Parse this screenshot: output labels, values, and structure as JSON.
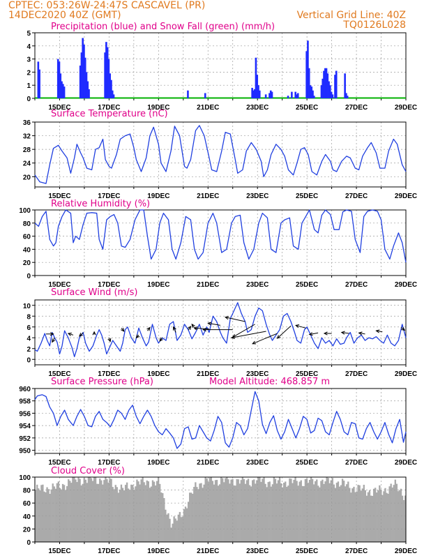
{
  "header": {
    "line1": "CPTEC:  053:26W-24:47S  CASCAVEL (PR)",
    "line2": "14DEC2020 40Z (GMT)",
    "grid_note": "Vertical Grid Line: 40Z",
    "code": "TQ0126L028"
  },
  "colors": {
    "header": "#e07a1f",
    "panel_title": "#e0008a",
    "precip": "#1f2bff",
    "snow": "#00b000",
    "line": "#1f3fe0",
    "cloud": "#aaaaaa",
    "grid": "#9a9a9a"
  },
  "x_tick_labels": [
    "15DEC",
    "17DEC",
    "19DEC",
    "21DEC",
    "23DEC",
    "25DEC",
    "27DEC",
    "29DEC"
  ],
  "chart_data": [
    {
      "id": "precip",
      "type": "bar",
      "title": "Precipitation (blue) and Snow Fall (green) (mm/h)",
      "ylim": [
        0,
        5
      ],
      "yticks": [
        0,
        1,
        2,
        3,
        4,
        5
      ],
      "grid": true,
      "x_range_days": [
        14.0,
        29.0
      ],
      "x": [
        14.1,
        14.15,
        14.9,
        14.95,
        15.0,
        15.05,
        15.1,
        15.15,
        15.8,
        15.85,
        15.9,
        15.95,
        16.0,
        16.05,
        16.1,
        16.15,
        16.8,
        16.85,
        16.9,
        16.95,
        17.0,
        17.05,
        17.1,
        17.15,
        20.15,
        20.85,
        22.75,
        22.8,
        22.85,
        22.9,
        22.95,
        23.0,
        23.05,
        23.3,
        23.45,
        23.5,
        23.55,
        24.2,
        24.35,
        24.5,
        24.55,
        24.6,
        24.95,
        25.0,
        25.05,
        25.1,
        25.15,
        25.2,
        25.25,
        25.55,
        25.6,
        25.65,
        25.7,
        25.75,
        25.8,
        25.85,
        25.9,
        25.95,
        26.0,
        26.1,
        26.15,
        26.5,
        26.55,
        26.6
      ],
      "values": [
        2.8,
        2.2,
        3.0,
        2.8,
        1.9,
        1.3,
        1.1,
        0.9,
        2.5,
        3.5,
        4.6,
        4.1,
        3.1,
        2.0,
        1.3,
        0.7,
        3.5,
        4.3,
        3.9,
        3.0,
        1.9,
        1.4,
        0.6,
        0.3,
        0.6,
        0.4,
        0.8,
        0.6,
        0.7,
        3.1,
        1.8,
        1.0,
        0.6,
        0.3,
        0.4,
        0.6,
        0.5,
        0.2,
        0.5,
        0.5,
        0.3,
        0.4,
        3.6,
        4.4,
        2.3,
        1.0,
        0.9,
        0.6,
        0.2,
        1.0,
        1.5,
        2.1,
        2.3,
        2.3,
        1.9,
        1.3,
        1.0,
        0.5,
        0.3,
        1.8,
        2.1,
        1.9,
        0.4,
        0.2
      ],
      "snow": "0"
    },
    {
      "id": "temp",
      "type": "line",
      "title": "Surface Temperature (nC)",
      "ylim": [
        17,
        36
      ],
      "yticks": [
        20,
        24,
        28,
        32,
        36
      ],
      "grid": true,
      "x_range_days": [
        14.0,
        29.0
      ],
      "x": [
        14.0,
        14.2,
        14.45,
        14.6,
        14.75,
        14.95,
        15.1,
        15.3,
        15.45,
        15.6,
        15.7,
        15.85,
        15.95,
        16.1,
        16.3,
        16.45,
        16.6,
        16.75,
        16.85,
        17.0,
        17.1,
        17.3,
        17.45,
        17.65,
        17.85,
        18.0,
        18.1,
        18.3,
        18.5,
        18.65,
        18.8,
        19.0,
        19.1,
        19.3,
        19.5,
        19.65,
        19.85,
        20.05,
        20.15,
        20.3,
        20.5,
        20.65,
        20.85,
        21.05,
        21.15,
        21.35,
        21.55,
        21.7,
        21.9,
        22.1,
        22.2,
        22.4,
        22.55,
        22.75,
        22.95,
        23.15,
        23.25,
        23.4,
        23.55,
        23.75,
        23.95,
        24.1,
        24.25,
        24.45,
        24.6,
        24.75,
        24.9,
        25.05,
        25.2,
        25.4,
        25.6,
        25.75,
        25.95,
        26.05,
        26.2,
        26.4,
        26.6,
        26.75,
        26.95,
        27.1,
        27.25,
        27.45,
        27.6,
        27.8,
        27.95,
        28.15,
        28.3,
        28.5,
        28.65,
        28.85,
        29.0
      ],
      "values": [
        20.5,
        18.5,
        18.0,
        23.5,
        28.3,
        29.2,
        27.5,
        25.5,
        21.0,
        25.5,
        29.5,
        27.0,
        25.5,
        22.5,
        22.0,
        28.0,
        28.5,
        31.0,
        25.0,
        23.0,
        22.5,
        26.5,
        31.0,
        32.0,
        32.5,
        28.5,
        25.0,
        21.5,
        25.5,
        32.0,
        34.5,
        29.5,
        24.0,
        21.5,
        27.5,
        34.8,
        32.0,
        23.0,
        22.5,
        25.0,
        33.5,
        35.0,
        32.0,
        25.5,
        22.0,
        21.5,
        27.5,
        33.0,
        32.5,
        25.0,
        21.0,
        22.0,
        27.5,
        30.0,
        28.0,
        24.5,
        20.0,
        22.0,
        26.5,
        29.5,
        28.0,
        26.0,
        22.0,
        20.5,
        24.0,
        28.0,
        28.5,
        26.5,
        21.5,
        20.5,
        24.5,
        26.5,
        24.5,
        22.0,
        21.5,
        24.5,
        26.0,
        25.5,
        22.5,
        22.0,
        26.0,
        28.5,
        30.0,
        27.0,
        22.5,
        22.5,
        27.5,
        31.0,
        29.5,
        23.5,
        21.5
      ]
    },
    {
      "id": "rh",
      "type": "line",
      "title": "Relative Humidity (%)",
      "ylim": [
        0,
        100
      ],
      "yticks": [
        0,
        20,
        40,
        60,
        80,
        100
      ],
      "grid": true,
      "x_range_days": [
        14.0,
        29.0
      ],
      "x": [
        14.0,
        14.15,
        14.3,
        14.45,
        14.6,
        14.75,
        14.85,
        14.95,
        15.1,
        15.25,
        15.45,
        15.55,
        15.65,
        15.8,
        15.95,
        16.1,
        16.3,
        16.5,
        16.6,
        16.75,
        16.9,
        17.05,
        17.2,
        17.35,
        17.5,
        17.65,
        17.85,
        18.05,
        18.25,
        18.4,
        18.55,
        18.7,
        18.9,
        19.05,
        19.2,
        19.4,
        19.55,
        19.7,
        19.9,
        20.1,
        20.3,
        20.45,
        20.6,
        20.8,
        21.0,
        21.2,
        21.35,
        21.55,
        21.75,
        21.95,
        22.1,
        22.3,
        22.45,
        22.65,
        22.85,
        23.05,
        23.2,
        23.4,
        23.55,
        23.75,
        23.95,
        24.1,
        24.3,
        24.45,
        24.65,
        24.8,
        24.95,
        25.1,
        25.3,
        25.45,
        25.6,
        25.75,
        25.95,
        26.1,
        26.3,
        26.45,
        26.6,
        26.8,
        26.95,
        27.15,
        27.3,
        27.45,
        27.65,
        27.85,
        28.0,
        28.15,
        28.35,
        28.5,
        28.7,
        28.85,
        29.0
      ],
      "values": [
        80,
        75,
        90,
        98,
        55,
        45,
        50,
        75,
        90,
        100,
        95,
        50,
        60,
        55,
        78,
        95,
        96,
        95,
        55,
        40,
        85,
        90,
        93,
        80,
        45,
        43,
        55,
        85,
        100,
        100,
        60,
        25,
        40,
        80,
        95,
        85,
        40,
        25,
        50,
        90,
        85,
        40,
        25,
        35,
        80,
        95,
        80,
        35,
        40,
        80,
        90,
        92,
        50,
        25,
        40,
        80,
        95,
        88,
        40,
        35,
        80,
        85,
        88,
        45,
        40,
        80,
        90,
        100,
        70,
        65,
        92,
        100,
        93,
        70,
        70,
        97,
        100,
        98,
        55,
        35,
        90,
        98,
        100,
        98,
        85,
        40,
        25,
        45,
        65,
        50,
        20
      ],
      "extra_dips": [
        [
          15.55,
          48
        ],
        [
          16.15,
          80
        ],
        [
          27.35,
          73
        ],
        [
          25.55,
          80
        ]
      ]
    },
    {
      "id": "wind",
      "type": "line",
      "title": "Surface Wind (m/s)",
      "ylim": [
        -1,
        11
      ],
      "yticks": [
        0,
        2,
        4,
        6,
        8,
        10
      ],
      "grid": true,
      "x_range_days": [
        14.0,
        29.0
      ],
      "x": [
        14.0,
        14.1,
        14.25,
        14.4,
        14.5,
        14.6,
        14.7,
        14.8,
        14.9,
        15.0,
        15.1,
        15.2,
        15.35,
        15.5,
        15.6,
        15.7,
        15.8,
        15.95,
        16.05,
        16.2,
        16.35,
        16.5,
        16.6,
        16.7,
        16.8,
        16.9,
        17.0,
        17.15,
        17.3,
        17.45,
        17.55,
        17.65,
        17.75,
        17.9,
        18.05,
        18.2,
        18.35,
        18.5,
        18.6,
        18.75,
        18.9,
        19.0,
        19.15,
        19.3,
        19.45,
        19.6,
        19.75,
        19.9,
        20.05,
        20.2,
        20.35,
        20.5,
        20.65,
        20.8,
        20.95,
        21.05,
        21.2,
        21.35,
        21.5,
        21.6,
        21.75,
        21.9,
        22.05,
        22.2,
        22.35,
        22.5,
        22.6,
        22.75,
        22.9,
        23.05,
        23.2,
        23.35,
        23.5,
        23.6,
        23.75,
        23.9,
        24.05,
        24.2,
        24.35,
        24.5,
        24.6,
        24.75,
        24.9,
        25.0,
        25.15,
        25.3,
        25.45,
        25.6,
        25.75,
        25.9,
        26.05,
        26.2,
        26.35,
        26.5,
        26.6,
        26.75,
        26.9,
        27.05,
        27.2,
        27.35,
        27.5,
        27.65,
        27.8,
        27.95,
        28.1,
        28.25,
        28.4,
        28.55,
        28.7,
        28.85,
        29.0
      ],
      "values": [
        1.8,
        1.5,
        3.0,
        4.8,
        3.5,
        2.5,
        5.0,
        4.0,
        3.2,
        1.0,
        2.5,
        5.3,
        4.0,
        2.2,
        0.5,
        2.0,
        4.0,
        5.0,
        3.0,
        1.5,
        2.5,
        4.5,
        5.5,
        4.5,
        3.0,
        1.0,
        2.0,
        3.5,
        2.5,
        1.5,
        3.0,
        5.5,
        6.0,
        4.0,
        3.0,
        5.8,
        4.0,
        2.5,
        3.2,
        6.5,
        4.0,
        3.0,
        4.0,
        3.5,
        6.5,
        7.0,
        3.5,
        4.5,
        6.5,
        5.5,
        3.8,
        5.0,
        6.5,
        4.5,
        6.0,
        5.0,
        8.0,
        7.0,
        5.0,
        4.0,
        3.0,
        7.5,
        9.0,
        10.5,
        8.5,
        7.0,
        5.0,
        5.5,
        8.0,
        9.5,
        9.0,
        6.5,
        4.5,
        3.5,
        4.5,
        5.5,
        8.0,
        8.5,
        7.0,
        5.0,
        3.5,
        3.0,
        5.5,
        6.0,
        4.5,
        3.0,
        2.0,
        4.0,
        3.0,
        3.5,
        2.5,
        3.8,
        2.8,
        3.0,
        4.0,
        5.0,
        3.0,
        4.0,
        4.5,
        3.5,
        4.0,
        3.8,
        4.2,
        3.5,
        3.0,
        4.5,
        3.0,
        2.5,
        3.5,
        6.5,
        4.0
      ],
      "vectors": [
        {
          "x": 14.45,
          "y": 4.7,
          "dx": 0.3,
          "dy": 0.0
        },
        {
          "x": 14.8,
          "y": 4.0,
          "dx": -0.1,
          "dy": -0.8
        },
        {
          "x": 15.55,
          "y": 4.5,
          "dx": -0.2,
          "dy": 0.3
        },
        {
          "x": 15.95,
          "y": 4.9,
          "dx": -0.15,
          "dy": -0.6
        },
        {
          "x": 16.4,
          "y": 4.6,
          "dx": 0.0,
          "dy": 0.5
        },
        {
          "x": 17.0,
          "y": 4.0,
          "dx": 0.05,
          "dy": -0.7
        },
        {
          "x": 17.5,
          "y": 5.8,
          "dx": 0.1,
          "dy": -0.6
        },
        {
          "x": 18.2,
          "y": 4.5,
          "dx": -0.1,
          "dy": -0.5
        },
        {
          "x": 18.55,
          "y": 5.3,
          "dx": 0.1,
          "dy": 0.6
        },
        {
          "x": 19.15,
          "y": 4.0,
          "dx": -0.1,
          "dy": -0.6
        },
        {
          "x": 19.7,
          "y": 5.0,
          "dx": -0.1,
          "dy": 1.0
        },
        {
          "x": 20.2,
          "y": 5.4,
          "dx": 0.1,
          "dy": 0.7
        },
        {
          "x": 20.5,
          "y": 5.5,
          "dx": -0.15,
          "dy": 1.0
        },
        {
          "x": 21.05,
          "y": 5.6,
          "dx": -0.6,
          "dy": 0.2
        },
        {
          "x": 21.5,
          "y": 6.3,
          "dx": -0.5,
          "dy": 0.4
        },
        {
          "x": 22.0,
          "y": 5.5,
          "dx": -1.2,
          "dy": 0.0
        },
        {
          "x": 22.5,
          "y": 7.0,
          "dx": -0.8,
          "dy": 0.8
        },
        {
          "x": 22.9,
          "y": 6.5,
          "dx": -0.9,
          "dy": -2.4
        },
        {
          "x": 23.35,
          "y": 5.2,
          "dx": -1.4,
          "dy": -1.2
        },
        {
          "x": 23.8,
          "y": 4.8,
          "dx": -1.0,
          "dy": -1.9
        },
        {
          "x": 24.35,
          "y": 6.2,
          "dx": -0.55,
          "dy": -2.3
        },
        {
          "x": 24.95,
          "y": 5.8,
          "dx": -0.4,
          "dy": 0.5
        },
        {
          "x": 25.45,
          "y": 4.9,
          "dx": -0.35,
          "dy": -0.3
        },
        {
          "x": 26.0,
          "y": 4.8,
          "dx": -0.3,
          "dy": 0.0
        },
        {
          "x": 26.7,
          "y": 4.8,
          "dx": -0.3,
          "dy": 0.2
        },
        {
          "x": 27.35,
          "y": 4.7,
          "dx": -0.25,
          "dy": 0.2
        },
        {
          "x": 28.05,
          "y": 5.1,
          "dx": -0.25,
          "dy": 0.2
        },
        {
          "x": 28.8,
          "y": 5.9,
          "dx": 0.15,
          "dy": -0.5
        }
      ]
    },
    {
      "id": "pres",
      "type": "line",
      "title": "Surface Pressure (hPa)",
      "annotation": "Model Altitude: 468.857 m",
      "ylim": [
        949.5,
        960
      ],
      "yticks": [
        950,
        952,
        954,
        956,
        958,
        960
      ],
      "grid": true,
      "x_range_days": [
        14.0,
        29.0
      ],
      "x": [
        14.0,
        14.1,
        14.3,
        14.45,
        14.6,
        14.75,
        14.9,
        15.05,
        15.2,
        15.35,
        15.55,
        15.7,
        15.85,
        16.0,
        16.15,
        16.3,
        16.45,
        16.6,
        16.75,
        16.9,
        17.05,
        17.2,
        17.35,
        17.5,
        17.65,
        17.8,
        17.95,
        18.1,
        18.25,
        18.4,
        18.55,
        18.7,
        18.85,
        19.0,
        19.15,
        19.3,
        19.45,
        19.6,
        19.75,
        19.9,
        20.05,
        20.2,
        20.35,
        20.5,
        20.65,
        20.8,
        20.95,
        21.1,
        21.25,
        21.4,
        21.55,
        21.7,
        21.85,
        22.0,
        22.15,
        22.3,
        22.45,
        22.6,
        22.75,
        22.9,
        23.05,
        23.2,
        23.35,
        23.5,
        23.65,
        23.8,
        23.95,
        24.1,
        24.25,
        24.4,
        24.55,
        24.7,
        24.85,
        25.0,
        25.15,
        25.3,
        25.45,
        25.6,
        25.75,
        25.9,
        26.05,
        26.2,
        26.35,
        26.5,
        26.65,
        26.8,
        26.95,
        27.1,
        27.25,
        27.4,
        27.55,
        27.7,
        27.85,
        28.0,
        28.15,
        28.3,
        28.45,
        28.6,
        28.75,
        28.9,
        29.0
      ],
      "values": [
        958.2,
        958.8,
        959.0,
        958.7,
        957.0,
        956.0,
        954.0,
        955.5,
        956.5,
        955.0,
        954.0,
        955.5,
        956.6,
        955.5,
        954.0,
        953.8,
        955.5,
        956.3,
        955.0,
        954.5,
        953.8,
        955.0,
        956.5,
        956.0,
        955.0,
        956.5,
        957.3,
        955.5,
        954.3,
        955.5,
        956.5,
        955.5,
        954.0,
        953.0,
        952.5,
        953.5,
        952.8,
        952.0,
        950.3,
        951.0,
        953.5,
        953.8,
        951.8,
        952.0,
        954.0,
        953.0,
        952.0,
        951.5,
        953.2,
        955.5,
        954.5,
        951.2,
        950.5,
        952.0,
        954.5,
        954.0,
        952.5,
        953.5,
        956.5,
        959.5,
        958.0,
        954.2,
        952.7,
        954.5,
        955.6,
        953.2,
        951.8,
        953.0,
        955.0,
        953.5,
        952.0,
        953.5,
        955.5,
        955.0,
        952.8,
        953.2,
        955.2,
        954.8,
        953.0,
        952.5,
        954.5,
        956.3,
        955.0,
        953.0,
        952.5,
        954.5,
        954.3,
        952.0,
        951.8,
        953.5,
        954.5,
        953.0,
        951.8,
        953.0,
        954.5,
        952.6,
        951.2,
        953.5,
        955.0,
        951.3,
        953.0
      ]
    },
    {
      "id": "cloud",
      "type": "bar",
      "title": "Cloud Cover (%)",
      "ylim": [
        0,
        100
      ],
      "yticks": [
        0,
        20,
        40,
        60,
        80,
        100
      ],
      "grid": true,
      "x_range_days": [
        14.0,
        29.0
      ],
      "x": [
        14.0,
        14.5,
        15.0,
        15.5,
        16.0,
        16.5,
        17.0,
        17.5,
        18.0,
        18.5,
        19.0,
        19.5,
        20.0,
        20.5,
        21.0,
        21.5,
        22.0,
        22.5,
        23.0,
        23.5,
        24.0,
        24.5,
        25.0,
        25.5,
        26.0,
        26.5,
        27.0,
        27.5,
        28.0,
        28.5,
        29.0
      ],
      "values": [
        80,
        83,
        85,
        96,
        96,
        97,
        93,
        80,
        90,
        93,
        90,
        25,
        50,
        88,
        95,
        95,
        95,
        93,
        96,
        92,
        92,
        93,
        94,
        93,
        94,
        88,
        82,
        78,
        78,
        88,
        70
      ]
    }
  ]
}
